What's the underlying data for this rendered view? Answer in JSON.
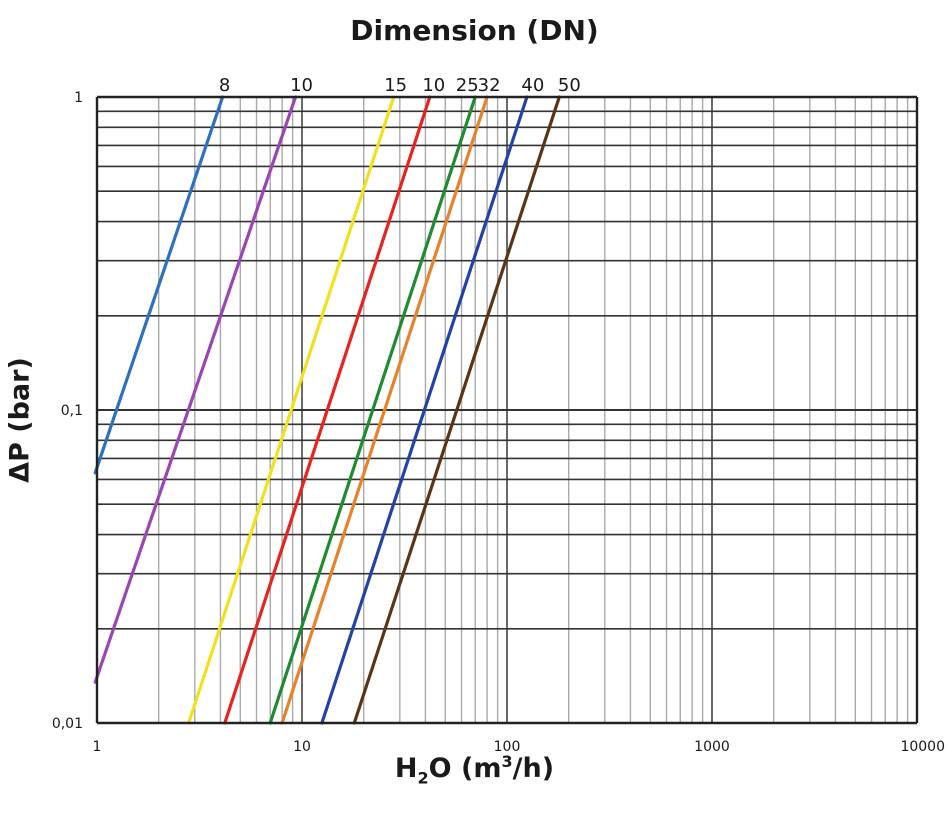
{
  "chart_data": {
    "type": "line",
    "title": "Dimension (DN)",
    "xlabel_parts": {
      "base": "H",
      "sub": "2",
      "rest": "O (m",
      "sup": "3",
      "tail": "/h)"
    },
    "ylabel": "ΔP (bar)",
    "x_scale": "log",
    "y_scale": "log",
    "xlim": [
      1,
      10000
    ],
    "ylim": [
      0.01,
      1
    ],
    "grid": true,
    "x_ticks": [
      {
        "value": 1,
        "label": "1"
      },
      {
        "value": 10,
        "label": "10"
      },
      {
        "value": 100,
        "label": "100"
      },
      {
        "value": 1000,
        "label": "1000"
      },
      {
        "value": 10000,
        "label": "10000"
      }
    ],
    "y_ticks": [
      {
        "value": 0.01,
        "label": "0,01"
      },
      {
        "value": 0.1,
        "label": "0,1"
      },
      {
        "value": 1,
        "label": "1"
      }
    ],
    "series": [
      {
        "label": "8",
        "color": "#2e6fc0",
        "x": [
          0.98,
          4.1
        ],
        "y": [
          0.063,
          1
        ]
      },
      {
        "label": "10",
        "color": "#9b45b5",
        "x": [
          0.98,
          9.3
        ],
        "y": [
          0.0135,
          1
        ]
      },
      {
        "label": "15",
        "color": "#f2e01b",
        "x": [
          2.8,
          28
        ],
        "y": [
          0.01,
          1
        ]
      },
      {
        "label": "10",
        "color": "#e8231f",
        "x": [
          4.2,
          42
        ],
        "y": [
          0.01,
          1
        ]
      },
      {
        "label": "25",
        "color": "#1f8a2e",
        "x": [
          7.0,
          70
        ],
        "y": [
          0.01,
          1
        ]
      },
      {
        "label": "32",
        "color": "#e8822a",
        "x": [
          8.0,
          80
        ],
        "y": [
          0.01,
          1
        ]
      },
      {
        "label": "40",
        "color": "#2242a8",
        "x": [
          12.5,
          125
        ],
        "y": [
          0.01,
          1
        ]
      },
      {
        "label": "50",
        "color": "#5a3414",
        "x": [
          18,
          180
        ],
        "y": [
          0.01,
          1
        ]
      }
    ]
  }
}
